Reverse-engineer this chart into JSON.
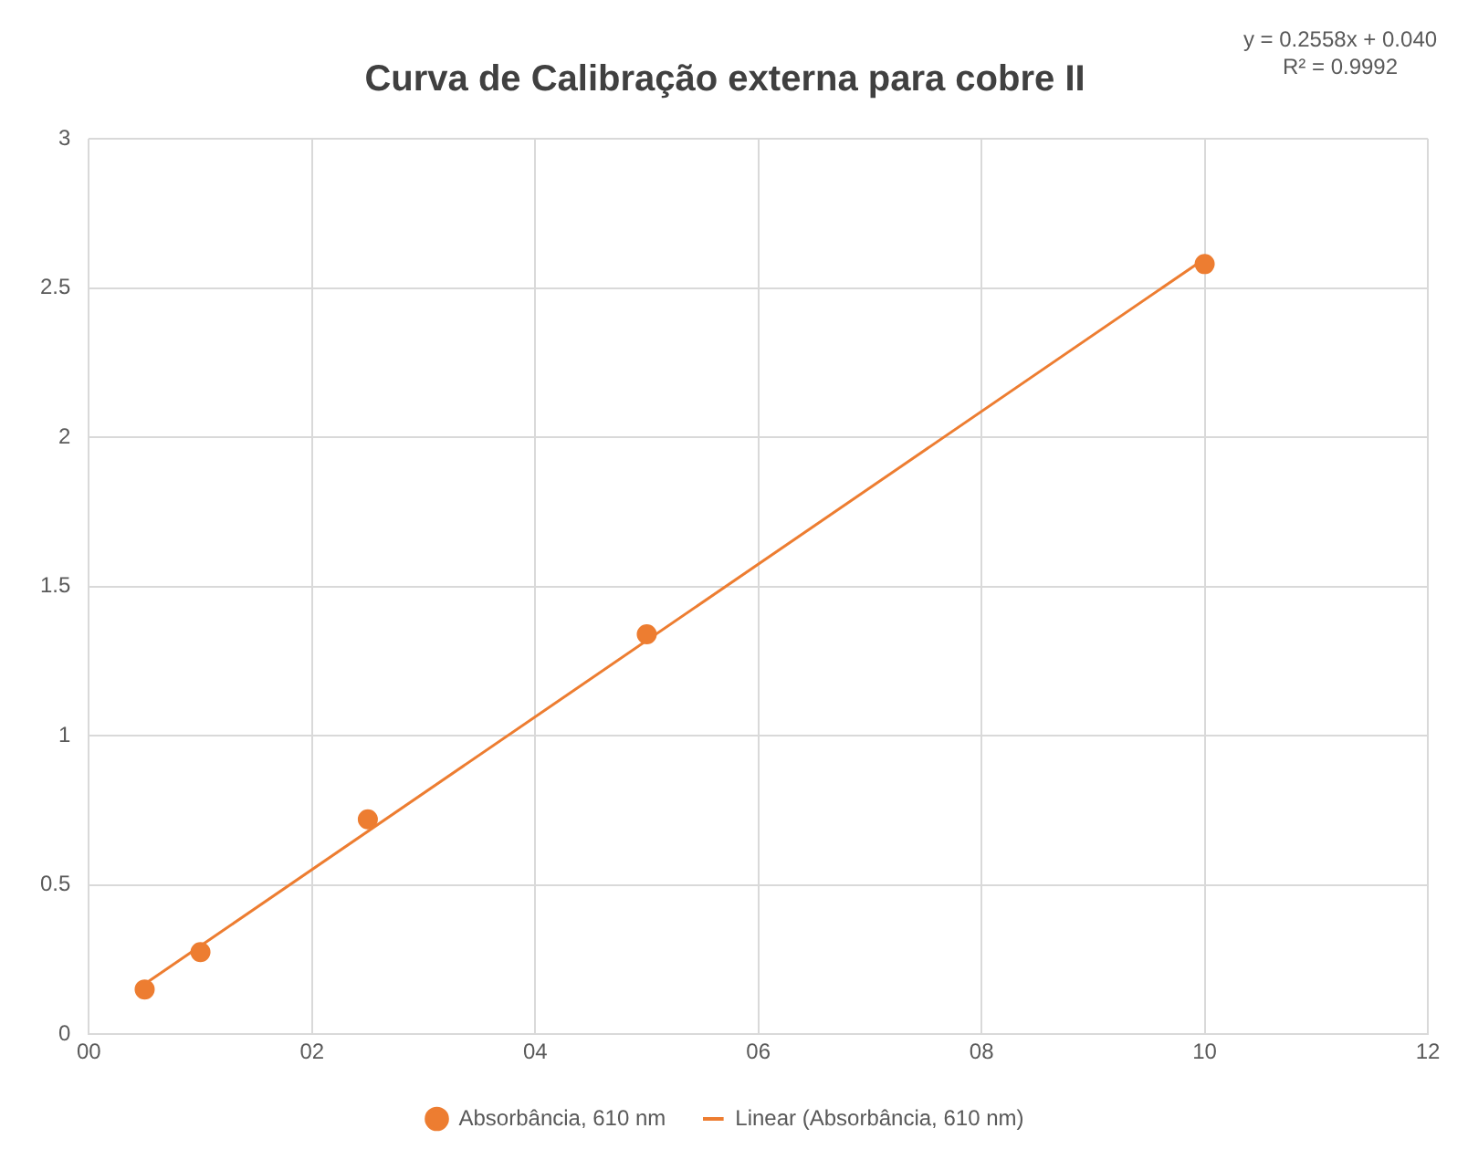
{
  "chart_data": {
    "type": "scatter",
    "title": "Curva de Calibração externa para cobre II",
    "x": [
      0.5,
      1,
      2.5,
      5,
      10
    ],
    "series": [
      {
        "name": "Absorbância, 610 nm",
        "color": "#ed7d31",
        "values": [
          0.15,
          0.275,
          0.72,
          1.34,
          2.58
        ],
        "marker": "circle"
      },
      {
        "name": "Linear (Absorbância, 610 nm)",
        "type": "line",
        "color": "#ed7d31",
        "x": [
          0.5,
          10
        ],
        "values": [
          0.168,
          2.598
        ],
        "marker": "none",
        "line_style": "solid"
      }
    ],
    "annotations": [
      "y = 0.2558x + 0.040",
      "R² = 0.9992"
    ],
    "xlim": [
      0,
      12
    ],
    "xticks": [
      {
        "value": 0,
        "label": "00"
      },
      {
        "value": 2,
        "label": "02"
      },
      {
        "value": 4,
        "label": "04"
      },
      {
        "value": 6,
        "label": "06"
      },
      {
        "value": 8,
        "label": "08"
      },
      {
        "value": 10,
        "label": "10"
      },
      {
        "value": 12,
        "label": "12"
      }
    ],
    "ylim": [
      0,
      3
    ],
    "yticks": [
      0,
      0.5,
      1,
      1.5,
      2,
      2.5,
      3
    ],
    "grid": true,
    "legend": "bottom"
  }
}
